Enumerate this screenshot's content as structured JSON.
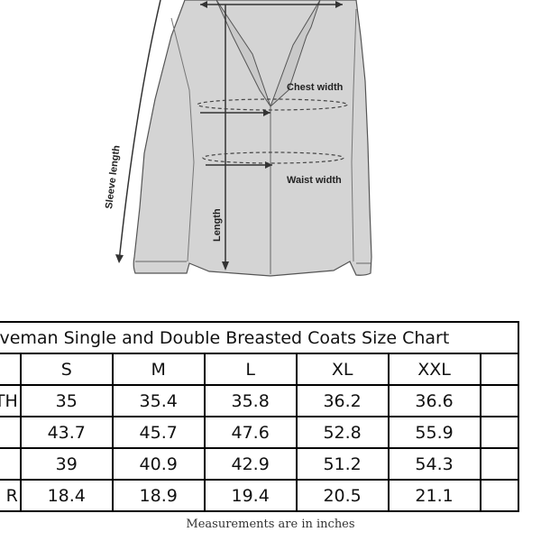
{
  "diagram": {
    "labels": {
      "chest": "Chest width",
      "waist": "Waist width",
      "length": "Length",
      "sleeve": "Sleeve length"
    }
  },
  "table": {
    "title": "raveman Single and Double Breasted Coats Size Chart",
    "headers": [
      "",
      "S",
      "M",
      "L",
      "XL",
      "XXL",
      ""
    ],
    "rows": [
      {
        "label": "TH",
        "values": [
          "35",
          "35.4",
          "35.8",
          "36.2",
          "36.6"
        ]
      },
      {
        "label": "",
        "values": [
          "43.7",
          "45.7",
          "47.6",
          "52.8",
          "55.9"
        ]
      },
      {
        "label": "",
        "values": [
          "39",
          "40.9",
          "42.9",
          "51.2",
          "54.3"
        ]
      },
      {
        "label": "R",
        "values": [
          "18.4",
          "18.9",
          "19.4",
          "20.5",
          "21.1"
        ]
      }
    ]
  },
  "footnote": "Measurements are in inches"
}
